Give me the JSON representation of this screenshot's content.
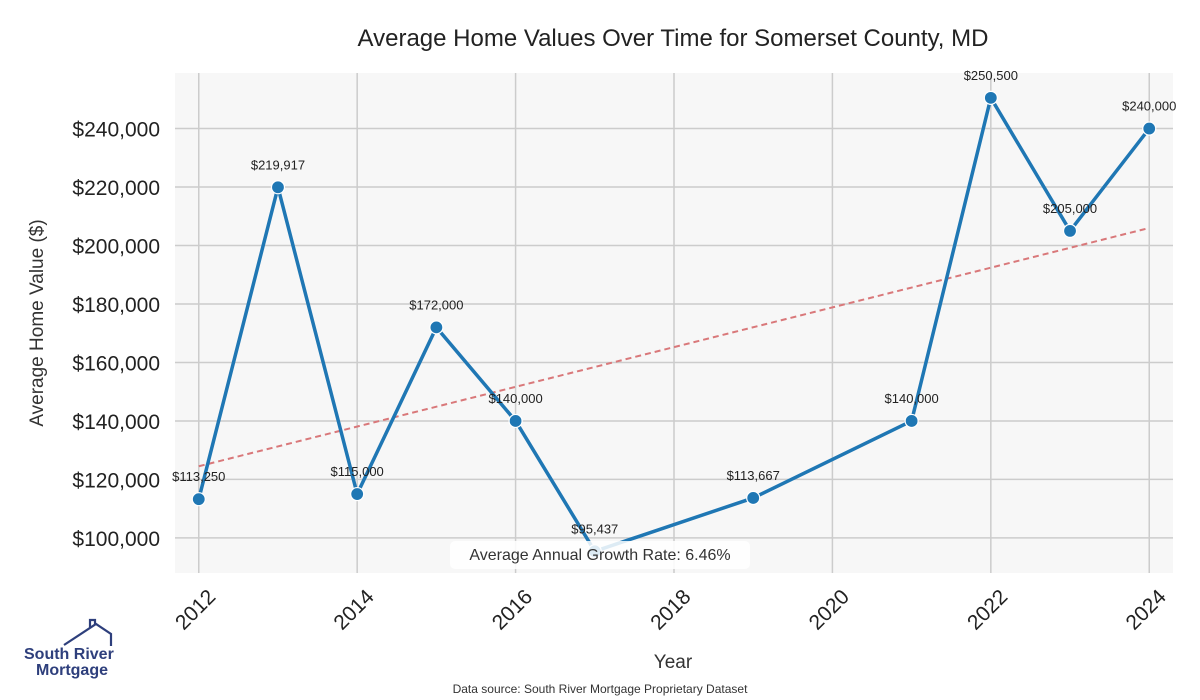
{
  "chart_data": {
    "type": "line",
    "title": "Average Home Values Over Time for Somerset County, MD",
    "xlabel": "Year",
    "ylabel": "Average Home Value ($)",
    "xlim": [
      2011.7,
      2024.3
    ],
    "ylim": [
      88000,
      259000
    ],
    "x_ticks": [
      2012,
      2014,
      2016,
      2018,
      2020,
      2022,
      2024
    ],
    "x_tick_labels": [
      "2012",
      "2014",
      "2016",
      "2018",
      "2020",
      "2022",
      "2024"
    ],
    "y_ticks": [
      100000,
      120000,
      140000,
      160000,
      180000,
      200000,
      220000,
      240000
    ],
    "y_tick_labels": [
      "$100,000",
      "$120,000",
      "$140,000",
      "$160,000",
      "$180,000",
      "$200,000",
      "$220,000",
      "$240,000"
    ],
    "grid": true,
    "series": [
      {
        "color": "#1f77b4",
        "points": [
          {
            "x": 2012,
            "y": 113250,
            "label": "$113,250"
          },
          {
            "x": 2013,
            "y": 219917,
            "label": "$219,917"
          },
          {
            "x": 2014,
            "y": 115000,
            "label": "$115,000"
          },
          {
            "x": 2015,
            "y": 172000,
            "label": "$172,000"
          },
          {
            "x": 2016,
            "y": 140000,
            "label": "$140,000"
          },
          {
            "x": 2017,
            "y": 95437,
            "label": "$95,437"
          },
          {
            "x": 2019,
            "y": 113667,
            "label": "$113,667"
          },
          {
            "x": 2021,
            "y": 140000,
            "label": "$140,000"
          },
          {
            "x": 2022,
            "y": 250500,
            "label": "$250,500"
          },
          {
            "x": 2023,
            "y": 205000,
            "label": "$205,000"
          },
          {
            "x": 2024,
            "y": 240000,
            "label": "$240,000"
          }
        ]
      }
    ],
    "trendline": {
      "color": "#d9787a",
      "style": "dashed",
      "x": [
        2012,
        2024
      ],
      "y": [
        124500,
        206000
      ]
    },
    "annotation": "Average Annual Growth Rate: 6.46%",
    "source": "Data source: South River Mortgage Proprietary Dataset",
    "colors": {
      "line": "#1f77b4",
      "trend": "#d9787a",
      "plot_bg": "#f7f7f7",
      "grid": "#cccccc",
      "logo": "#2e3f7c"
    }
  },
  "logo": {
    "line1": "South River",
    "line2": "Mortgage",
    "icon": "house-roof-icon"
  }
}
